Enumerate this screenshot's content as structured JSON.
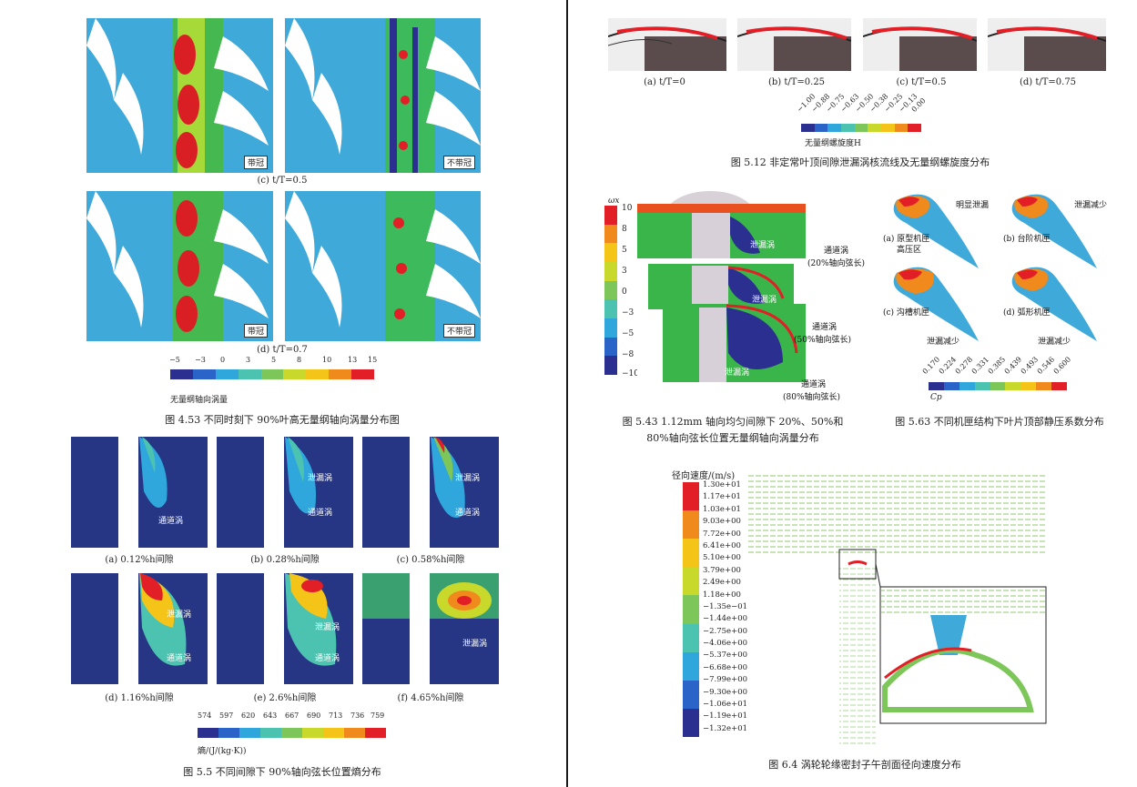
{
  "left": {
    "fig453": {
      "panel_c_tags": [
        "带冠",
        "不带冠"
      ],
      "panel_c_caption": "(c)  t/T=0.5",
      "panel_d_tags": [
        "带冠",
        "不带冠"
      ],
      "panel_d_caption": "(d)  t/T=0.7",
      "scale_ticks": [
        "−5",
        "−3",
        "0",
        "3",
        "5",
        "8",
        "10",
        "13",
        "15"
      ],
      "scale_title": "无量纲轴向涡量",
      "caption": "图 4.53   不同时刻下 90%叶高无量纲轴向涡量分布图"
    },
    "fig55": {
      "panels": [
        {
          "caption": "(a)  0.12%h间隙",
          "labels": [
            "通道涡"
          ]
        },
        {
          "caption": "(b)  0.28%h间隙",
          "labels": [
            "泄漏涡",
            "通道涡"
          ]
        },
        {
          "caption": "(c)  0.58%h间隙",
          "labels": [
            "泄漏涡",
            "通道涡"
          ]
        },
        {
          "caption": "(d)  1.16%h间隙",
          "labels": [
            "泄漏涡",
            "通道涡"
          ]
        },
        {
          "caption": "(e)  2.6%h间隙",
          "labels": [
            "泄漏涡",
            "通道涡"
          ]
        },
        {
          "caption": "(f)  4.65%h间隙",
          "labels": [
            "泄漏涡"
          ]
        }
      ],
      "scale_ticks": [
        "574",
        "597",
        "620",
        "643",
        "667",
        "690",
        "713",
        "736",
        "759"
      ],
      "scale_title": "熵/(J/(kg·K))",
      "caption": "图 5.5   不同间隙下 90%轴向弦长位置熵分布"
    }
  },
  "right": {
    "fig512": {
      "panel_captions": [
        "(a)  t/T=0",
        "(b)  t/T=0.25",
        "(c)  t/T=0.5",
        "(d)  t/T=0.75"
      ],
      "scale_ticks": [
        "−1.00",
        "−0.88",
        "−0.75",
        "−0.63",
        "−0.50",
        "−0.38",
        "−0.25",
        "−0.13",
        "0.00"
      ],
      "scale_title": "无量纲螺旋度H",
      "caption": "图 5.12   非定常叶顶间隙泄漏涡核流线及无量纲螺旋度分布"
    },
    "fig543": {
      "scale_title": "ωx",
      "scale_ticks": [
        "10",
        "8",
        "5",
        "3",
        "0",
        "−3",
        "−5",
        "−8",
        "−10"
      ],
      "vortex_labels": [
        "泄漏涡",
        "泄漏涡",
        "泄漏涡"
      ],
      "channel_labels": [
        "通道涡",
        "(20%轴向弦长)",
        "通道涡",
        "(50%轴向弦长)",
        "通道涡",
        "(80%轴向弦长)"
      ],
      "caption_line1": "图 5.43   1.12mm 轴向均匀间隙下 20%、50%和",
      "caption_line2": "80%轴向弦长位置无量纲轴向涡量分布"
    },
    "fig563": {
      "labels": [
        "明显泄漏",
        "泄漏减少",
        "(a)  原型机匣",
        "(b)  台阶机匣",
        "高压区",
        "(c)  沟槽机匣",
        "(d)  弧形机匣",
        "泄漏减少",
        "泄漏减少"
      ],
      "scale_ticks": [
        "0.170",
        "0.224",
        "0.278",
        "0.331",
        "0.385",
        "0.439",
        "0.493",
        "0.546",
        "0.600"
      ],
      "scale_title": "Cp",
      "caption": "图 5.63   不同机匣结构下叶片顶部静压系数分布"
    },
    "fig64": {
      "scale_title": "径向速度/(m/s)",
      "scale_values": [
        "1.30e+01",
        "1.17e+01",
        "1.03e+01",
        "9.03e+00",
        "7.72e+00",
        "6.41e+00",
        "5.10e+00",
        "3.79e+00",
        "2.49e+00",
        "1.18e+00",
        "−1.35e−01",
        "−1.44e+00",
        "−2.75e+00",
        "−4.06e+00",
        "−5.37e+00",
        "−6.68e+00",
        "−7.99e+00",
        "−9.30e+00",
        "−1.06e+01",
        "−1.19e+01",
        "−1.32e+01"
      ],
      "caption": "图 6.4   涡轮轮缘密封子午剖面径向速度分布"
    }
  },
  "colors": {
    "jet": [
      "#2b2f8f",
      "#2a64c8",
      "#2fa6dc",
      "#4cc3b0",
      "#7cc65a",
      "#c9d92c",
      "#f4c518",
      "#f08a1c",
      "#e21e26"
    ],
    "background": "#ffffff",
    "spine": "#1a1a1a"
  }
}
